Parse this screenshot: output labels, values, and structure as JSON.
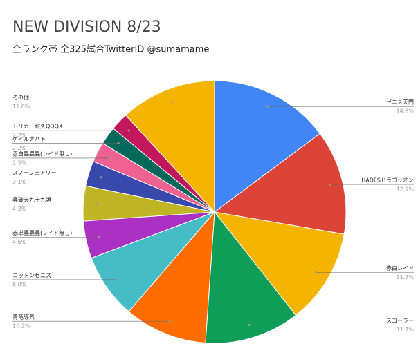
{
  "chart_data": {
    "type": "pie",
    "title": "NEW DIVISION 8/23",
    "subtitle": "全ランク帯 全325試合TwitterID @sumamame",
    "categories": [
      "ゼニス天門",
      "HADESドラゴリオン",
      "赤白レイド",
      "スコーラー",
      "青竜導具",
      "コットンゼニス",
      "赤単蟲蟲蟲(レイド無し)",
      "蟲破天九十九語",
      "スノーフェアリー",
      "赤白蟲蟲蟲(レイド無し)",
      "ゲイルナハト",
      "トリガー耐久QQQX",
      "その他"
    ],
    "values": [
      14.8,
      12.9,
      11.7,
      11.7,
      10.2,
      8.0,
      4.6,
      4.3,
      3.1,
      2.5,
      2.2,
      2.2,
      11.8
    ],
    "value_labels": [
      "14.8%",
      "12.9%",
      "11.7%",
      "11.7%",
      "10.2%",
      "8.0%",
      "4.6%",
      "4.3%",
      "3.1%",
      "2.5%",
      "2.2%",
      "2.2%",
      "11.8%"
    ],
    "colors": [
      "#4285f4",
      "#db4437",
      "#f4b400",
      "#0f9d58",
      "#ff6d00",
      "#46bdc6",
      "#ab30c4",
      "#c0b625",
      "#3949ab",
      "#f06292",
      "#00695c",
      "#c2185b",
      "#f4b400"
    ]
  }
}
